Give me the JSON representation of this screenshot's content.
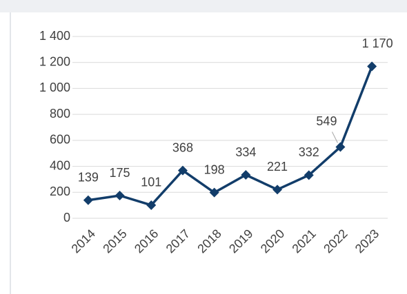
{
  "chart_data": {
    "type": "line",
    "categories": [
      "2014",
      "2015",
      "2016",
      "2017",
      "2018",
      "2019",
      "2020",
      "2021",
      "2022",
      "2023"
    ],
    "series": [
      {
        "color": "#123d6a",
        "values": [
          139,
          175,
          101,
          368,
          198,
          334,
          221,
          332,
          549,
          1170
        ],
        "value_labels": [
          "139",
          "175",
          "101",
          "368",
          "198",
          "334",
          "221",
          "332",
          "549",
          "1 170"
        ]
      }
    ],
    "ylim": [
      0,
      1400
    ],
    "yticks": [
      0,
      200,
      400,
      600,
      800,
      {
        "value": 1000,
        "label": "1 000"
      },
      {
        "value": 1200,
        "label": "1 200"
      },
      {
        "value": 1400,
        "label": "1 400"
      }
    ],
    "grid": true
  }
}
